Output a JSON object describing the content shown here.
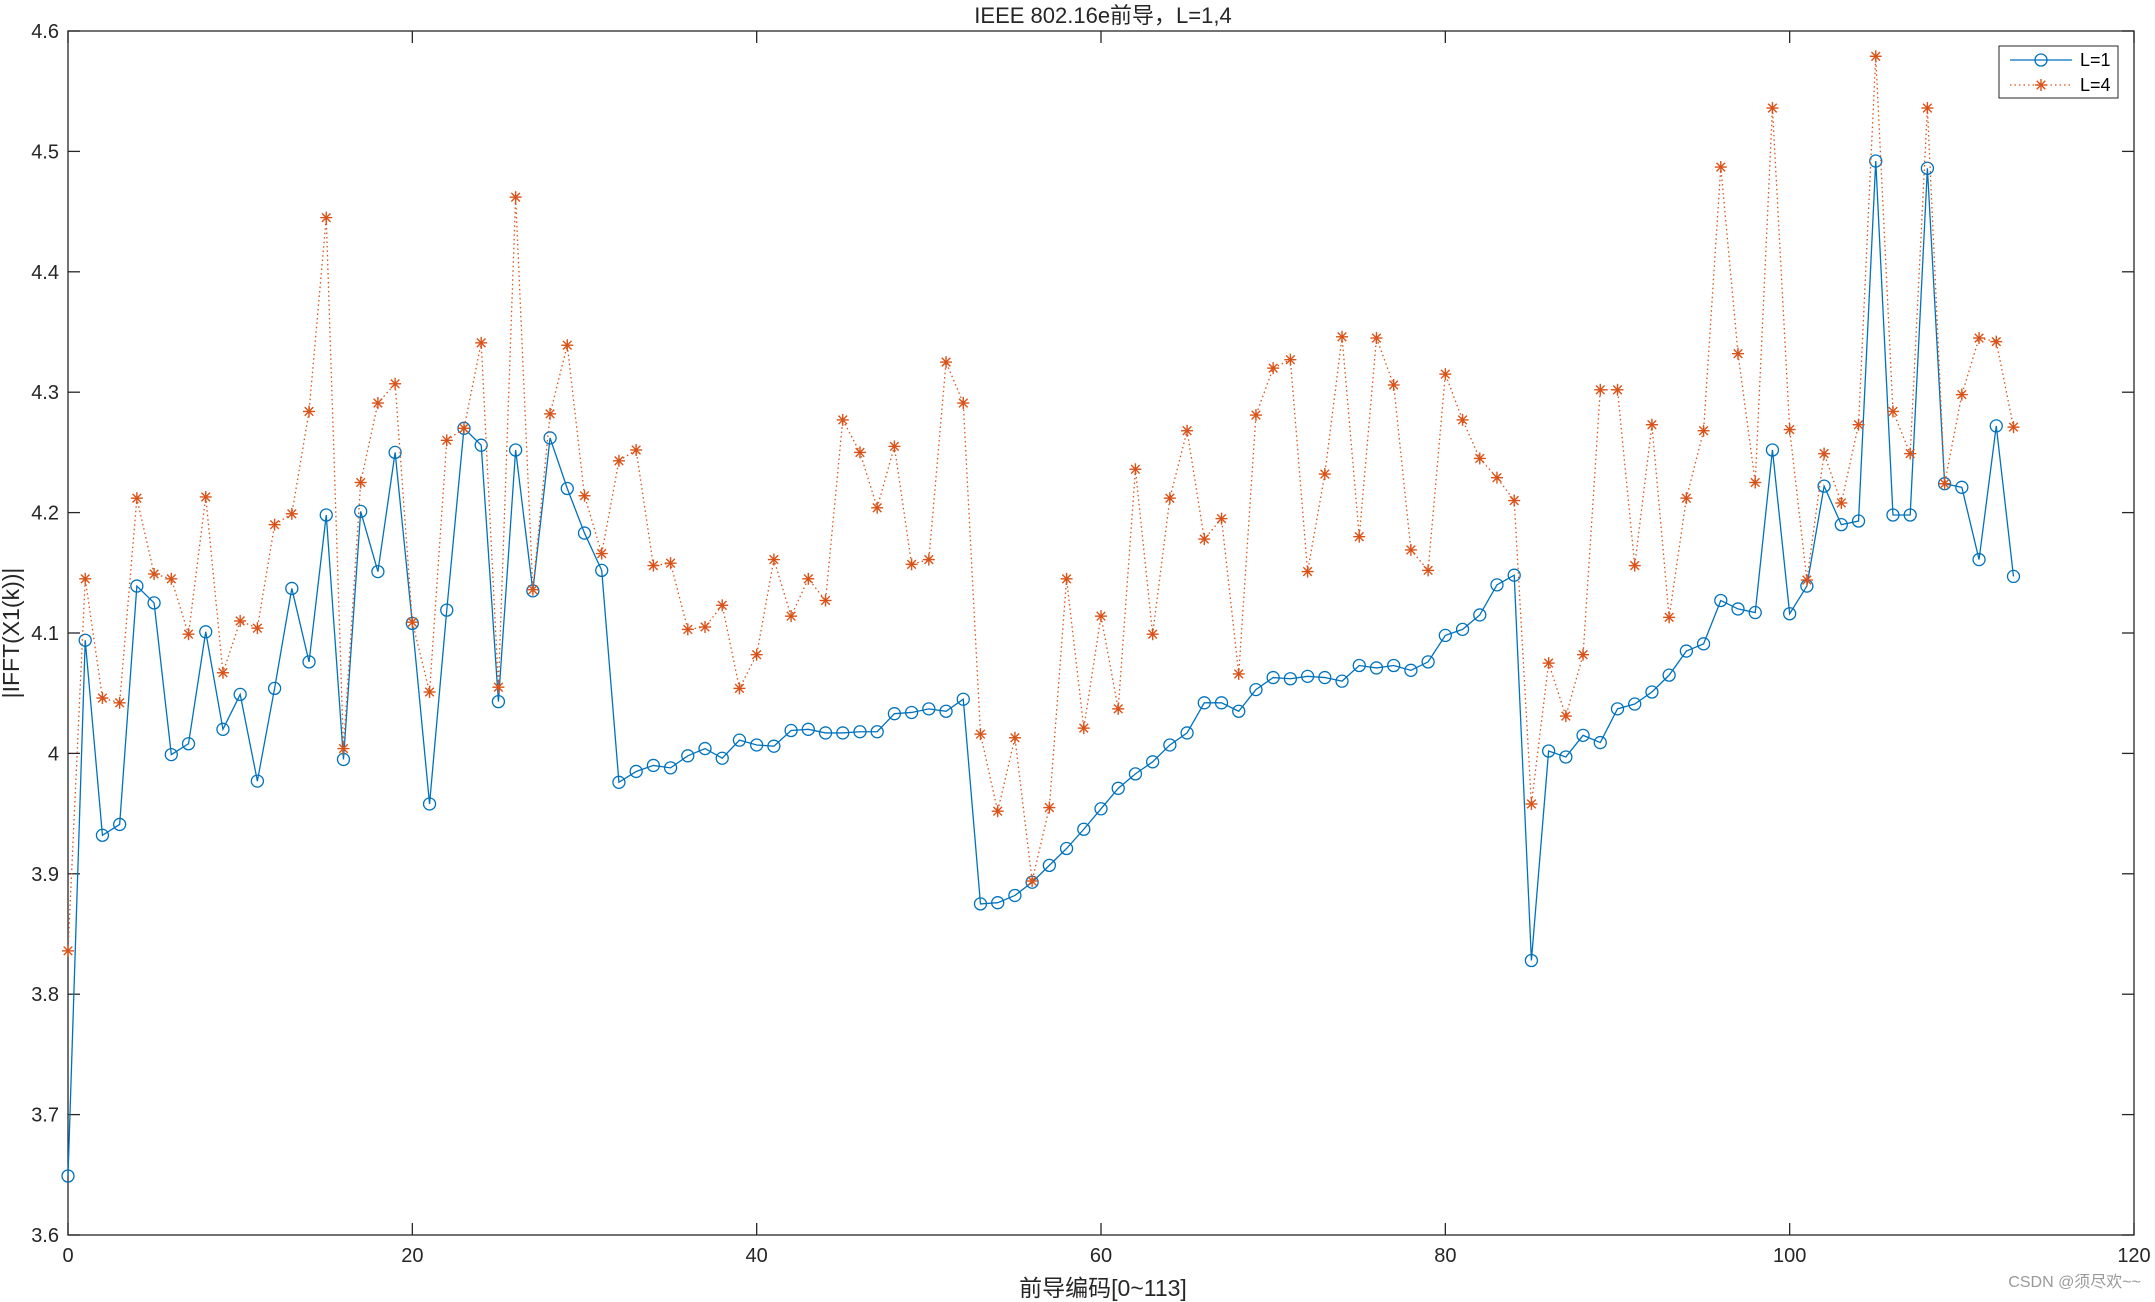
{
  "chart_data": {
    "type": "line",
    "title": "IEEE 802.16e前导，L=1,4",
    "xlabel": "前导编码[0~113]",
    "ylabel": "|IFFT(X1(k))|",
    "xlim": [
      0,
      120
    ],
    "ylim": [
      3.6,
      4.6
    ],
    "xticks": [
      0,
      20,
      40,
      60,
      80,
      100,
      120
    ],
    "yticks": [
      3.6,
      3.7,
      3.8,
      3.9,
      4,
      4.1,
      4.2,
      4.3,
      4.4,
      4.5,
      4.6
    ],
    "grid": false,
    "legend_position": "top-right",
    "x": [
      0,
      1,
      2,
      3,
      4,
      5,
      6,
      7,
      8,
      9,
      10,
      11,
      12,
      13,
      14,
      15,
      16,
      17,
      18,
      19,
      20,
      21,
      22,
      23,
      24,
      25,
      26,
      27,
      28,
      29,
      30,
      31,
      32,
      33,
      34,
      35,
      36,
      37,
      38,
      39,
      40,
      41,
      42,
      43,
      44,
      45,
      46,
      47,
      48,
      49,
      50,
      51,
      52,
      53,
      54,
      55,
      56,
      57,
      58,
      59,
      60,
      61,
      62,
      63,
      64,
      65,
      66,
      67,
      68,
      69,
      70,
      71,
      72,
      73,
      74,
      75,
      76,
      77,
      78,
      79,
      80,
      81,
      82,
      83,
      84,
      85,
      86,
      87,
      88,
      89,
      90,
      91,
      92,
      93,
      94,
      95,
      96,
      97,
      98,
      99,
      100,
      101,
      102,
      103,
      104,
      105,
      106,
      107,
      108,
      109,
      110,
      111,
      112,
      113
    ],
    "series": [
      {
        "name": "L=1",
        "color": "#0072BD",
        "line": "solid",
        "marker": "circle",
        "values": [
          3.649,
          4.094,
          3.932,
          3.941,
          4.139,
          4.125,
          3.999,
          4.008,
          4.101,
          4.02,
          4.049,
          3.977,
          4.054,
          4.137,
          4.076,
          4.198,
          3.995,
          4.201,
          4.151,
          4.25,
          4.108,
          3.958,
          4.119,
          4.27,
          4.256,
          4.043,
          4.252,
          4.135,
          4.262,
          4.22,
          4.183,
          4.152,
          3.976,
          3.985,
          3.99,
          3.988,
          3.998,
          4.004,
          3.996,
          4.011,
          4.007,
          4.006,
          4.019,
          4.02,
          4.017,
          4.017,
          4.018,
          4.018,
          4.033,
          4.034,
          4.037,
          4.035,
          4.045,
          3.875,
          3.876,
          3.882,
          3.893,
          3.907,
          3.921,
          3.937,
          3.954,
          3.971,
          3.983,
          3.993,
          4.007,
          4.017,
          4.042,
          4.042,
          4.035,
          4.053,
          4.063,
          4.062,
          4.064,
          4.063,
          4.06,
          4.073,
          4.071,
          4.073,
          4.069,
          4.076,
          4.098,
          4.103,
          4.115,
          4.14,
          4.148,
          3.828,
          4.002,
          3.997,
          4.015,
          4.009,
          4.037,
          4.041,
          4.051,
          4.065,
          4.085,
          4.091,
          4.127,
          4.12,
          4.117,
          4.252,
          4.116,
          4.139,
          4.222,
          4.19,
          4.193,
          4.492,
          4.198,
          4.198,
          4.486,
          4.224,
          4.221,
          4.161,
          4.272,
          4.147
        ]
      },
      {
        "name": "L=4",
        "color": "#D95319",
        "line": "dotted",
        "marker": "asterisk",
        "values": [
          3.836,
          4.145,
          4.046,
          4.042,
          4.212,
          4.149,
          4.145,
          4.099,
          4.213,
          4.067,
          4.11,
          4.104,
          4.19,
          4.199,
          4.284,
          4.445,
          4.004,
          4.225,
          4.291,
          4.307,
          4.109,
          4.051,
          4.26,
          4.27,
          4.341,
          4.055,
          4.462,
          4.136,
          4.282,
          4.339,
          4.214,
          4.166,
          4.243,
          4.252,
          4.156,
          4.158,
          4.103,
          4.105,
          4.123,
          4.054,
          4.082,
          4.161,
          4.114,
          4.145,
          4.127,
          4.277,
          4.25,
          4.204,
          4.255,
          4.157,
          4.161,
          4.325,
          4.291,
          4.016,
          3.952,
          4.013,
          3.894,
          3.955,
          4.145,
          4.021,
          4.114,
          4.037,
          4.236,
          4.099,
          4.212,
          4.268,
          4.178,
          4.195,
          4.066,
          4.281,
          4.32,
          4.327,
          4.151,
          4.232,
          4.346,
          4.18,
          4.345,
          4.306,
          4.169,
          4.152,
          4.315,
          4.277,
          4.245,
          4.229,
          4.21,
          3.958,
          4.075,
          4.031,
          4.082,
          4.302,
          4.302,
          4.156,
          4.273,
          4.113,
          4.212,
          4.268,
          4.487,
          4.332,
          4.225,
          4.536,
          4.269,
          4.144,
          4.249,
          4.208,
          4.273,
          4.579,
          4.284,
          4.249,
          4.536,
          4.224,
          4.298,
          4.345,
          4.342,
          4.271
        ]
      }
    ]
  },
  "watermark": "CSDN @须尽欢~~"
}
